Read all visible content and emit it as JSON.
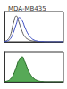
{
  "title": "MDA-MB435",
  "chart_data": [
    {
      "type": "line",
      "tick_labels": false,
      "x": [
        0,
        5,
        10,
        15,
        20,
        25,
        30,
        35,
        40,
        45,
        50,
        55,
        60,
        65,
        70,
        75,
        80,
        85,
        90,
        95,
        100
      ],
      "xlim": [
        0,
        100
      ],
      "ylim": [
        0,
        100
      ],
      "series": [
        {
          "color": "#555555",
          "type": "line",
          "values": [
            2,
            6,
            22,
            60,
            85,
            62,
            34,
            16,
            8,
            4,
            2,
            1,
            1,
            0,
            0,
            0,
            0,
            0,
            0,
            0,
            0
          ]
        },
        {
          "color": "#3b4cc0",
          "type": "line",
          "values": [
            1,
            3,
            10,
            30,
            58,
            80,
            70,
            46,
            26,
            13,
            6,
            3,
            1,
            1,
            0,
            0,
            0,
            0,
            0,
            0,
            0
          ]
        }
      ]
    },
    {
      "type": "line",
      "tick_labels": false,
      "x": [
        0,
        5,
        10,
        15,
        20,
        25,
        30,
        35,
        40,
        45,
        50,
        55,
        60,
        65,
        70,
        75,
        80,
        85,
        90,
        95,
        100
      ],
      "xlim": [
        0,
        100
      ],
      "ylim": [
        0,
        100
      ],
      "series": [
        {
          "color": "#3a9a3a",
          "type": "area",
          "values": [
            1,
            3,
            9,
            24,
            48,
            74,
            82,
            64,
            40,
            22,
            11,
            5,
            2,
            1,
            0,
            0,
            0,
            0,
            0,
            0,
            0
          ]
        }
      ]
    }
  ]
}
